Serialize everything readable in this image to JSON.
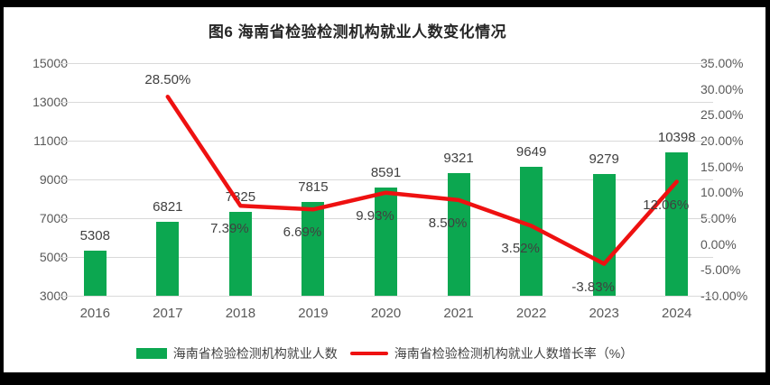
{
  "chart_data": {
    "type": "combo-bar-line-dual-axis",
    "title": "图6  海南省检验检测机构就业人数变化情况",
    "categories": [
      "2016",
      "2017",
      "2018",
      "2019",
      "2020",
      "2021",
      "2022",
      "2023",
      "2024"
    ],
    "series": [
      {
        "name": "海南省检验检测机构就业人数",
        "type": "bar",
        "axis": "left",
        "color": "#0CA750",
        "values": [
          5308,
          6821,
          7325,
          7815,
          8591,
          9321,
          9649,
          9279,
          10398
        ],
        "labels": [
          "5308",
          "6821",
          "7325",
          "7815",
          "8591",
          "9321",
          "9649",
          "9279",
          "10398"
        ]
      },
      {
        "name": "海南省检验检测机构就业人数增长率（%）",
        "type": "line",
        "axis": "right",
        "color": "#EE1111",
        "values": [
          null,
          28.5,
          7.39,
          6.69,
          9.93,
          8.5,
          3.52,
          -3.83,
          12.06
        ],
        "labels": [
          null,
          "28.50%",
          "7.39%",
          "6.69%",
          "9.93%",
          "8.50%",
          "3.52%",
          "-3.83%",
          "12.06%"
        ]
      }
    ],
    "left_axis": {
      "min": 3000,
      "max": 15000,
      "step": 2000,
      "ticks": [
        "15000",
        "13000",
        "11000",
        "9000",
        "7000",
        "5000",
        "3000"
      ]
    },
    "right_axis": {
      "min": -10,
      "max": 35,
      "step": 5,
      "ticks": [
        "35.00%",
        "30.00%",
        "25.00%",
        "20.00%",
        "15.00%",
        "10.00%",
        "5.00%",
        "0.00%",
        "-5.00%",
        "-10.00%"
      ]
    },
    "grid": true,
    "legend_position": "bottom"
  },
  "colors": {
    "frame": "#000000",
    "background": "#FFFFFF",
    "gridline": "#D9D9D9",
    "axis_text": "#595959",
    "data_label_text": "#404040",
    "title_text": "#262626"
  }
}
